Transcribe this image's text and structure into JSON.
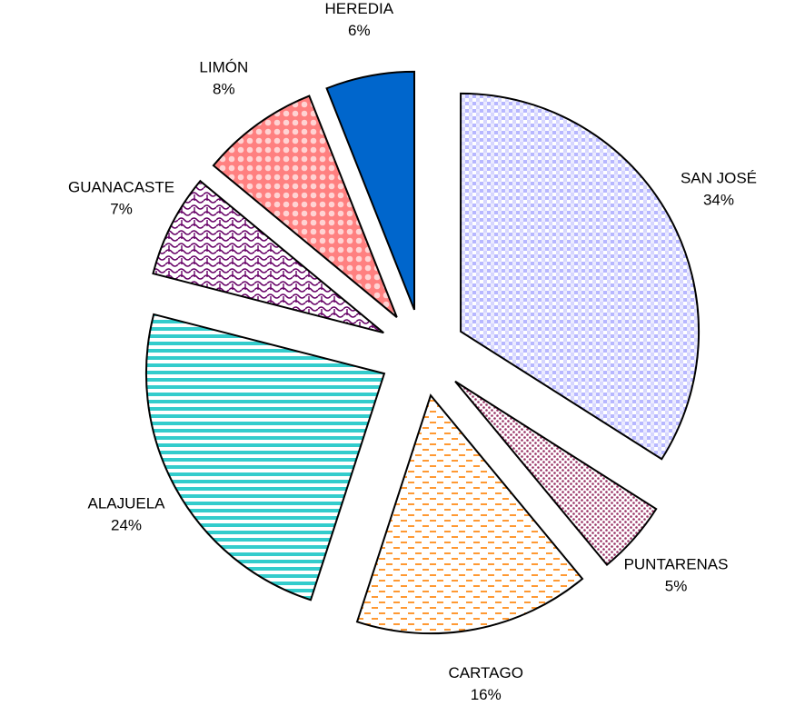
{
  "chart_data": {
    "type": "pie",
    "categories": [
      "SAN JOSÉ",
      "PUNTARENAS",
      "CARTAGO",
      "ALAJUELA",
      "GUANACASTE",
      "LIMÓN",
      "HEREDIA"
    ],
    "values": [
      34,
      5,
      16,
      24,
      7,
      8,
      6
    ],
    "value_labels": [
      "34%",
      "5%",
      "16%",
      "24%",
      "7%",
      "8%",
      "6%"
    ],
    "colors": [
      "#9999ff",
      "#993366",
      "#ff9933",
      "#33cccc",
      "#660066",
      "#ff8080",
      "#0066cc"
    ]
  }
}
